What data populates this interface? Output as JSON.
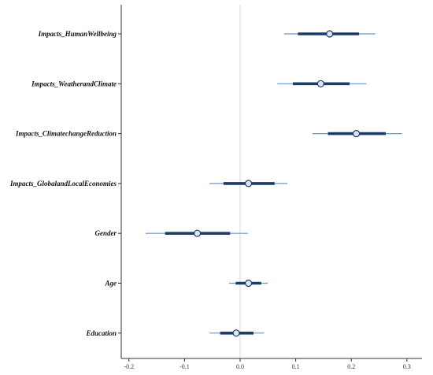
{
  "chart_data": {
    "type": "forest",
    "categories": [
      "Impacts_HumanWellbeing",
      "Impacts_WeatherandClimate",
      "Impacts_ClimatechangeReduction",
      "Impacts_GlobalandLocalEconomies",
      "Gender",
      "Age",
      "Education"
    ],
    "estimates": [
      {
        "name": "Impacts_HumanWellbeing",
        "estimate": 0.161,
        "inner": [
          0.104,
          0.214
        ],
        "outer": [
          0.079,
          0.243
        ]
      },
      {
        "name": "Impacts_WeatherandClimate",
        "estimate": 0.145,
        "inner": [
          0.095,
          0.197
        ],
        "outer": [
          0.067,
          0.227
        ]
      },
      {
        "name": "Impacts_ClimatechangeReduction",
        "estimate": 0.209,
        "inner": [
          0.158,
          0.262
        ],
        "outer": [
          0.13,
          0.291
        ]
      },
      {
        "name": "Impacts_GlobalandLocalEconomies",
        "estimate": 0.015,
        "inner": [
          -0.03,
          0.062
        ],
        "outer": [
          -0.055,
          0.085
        ]
      },
      {
        "name": "Gender",
        "estimate": -0.077,
        "inner": [
          -0.135,
          -0.018
        ],
        "outer": [
          -0.17,
          0.014
        ]
      },
      {
        "name": "Age",
        "estimate": 0.015,
        "inner": [
          -0.008,
          0.038
        ],
        "outer": [
          -0.02,
          0.05
        ]
      },
      {
        "name": "Education",
        "estimate": -0.007,
        "inner": [
          -0.036,
          0.024
        ],
        "outer": [
          -0.055,
          0.043
        ]
      }
    ],
    "x_ticks": [
      "-0.2",
      "-0.1",
      "0.0",
      "0.1",
      "0.2",
      "0.3"
    ],
    "xlim": [
      -0.22,
      0.32
    ],
    "reference_line": 0,
    "grid": false,
    "colors": {
      "thick_interval": "#1a3d6e",
      "thin_interval": "#6d96c6",
      "point_fill": "#dde6f1",
      "point_stroke": "#1a3d6e",
      "reference_line": "#d7d7d7",
      "axis": "#333333"
    }
  }
}
